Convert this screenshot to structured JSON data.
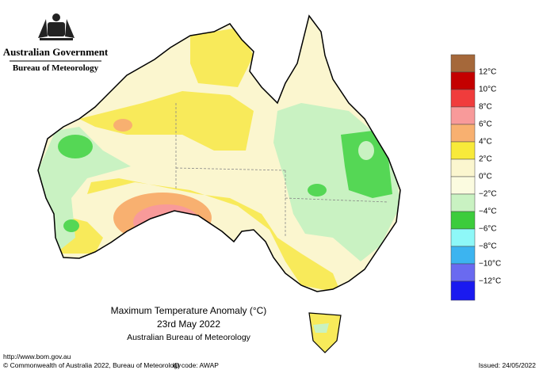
{
  "header": {
    "government": "Australian Government",
    "agency": "Bureau of Meteorology"
  },
  "legend": {
    "labels": [
      "12°C",
      "10°C",
      "8°C",
      "6°C",
      "4°C",
      "2°C",
      "0°C",
      "−2°C",
      "−4°C",
      "−6°C",
      "−8°C",
      "−10°C",
      "−12°C"
    ]
  },
  "map": {
    "title": "Maximum Temperature Anomaly (°C)",
    "date": "23rd May 2022",
    "source": "Australian Bureau of Meteorology"
  },
  "footer": {
    "url": "http://www.bom.gov.au",
    "copyright": "© Commonwealth of Australia 2022, Bureau of Meteorology",
    "id_code": "ID code: AWAP",
    "issued": "Issued: 24/05/2022"
  }
}
